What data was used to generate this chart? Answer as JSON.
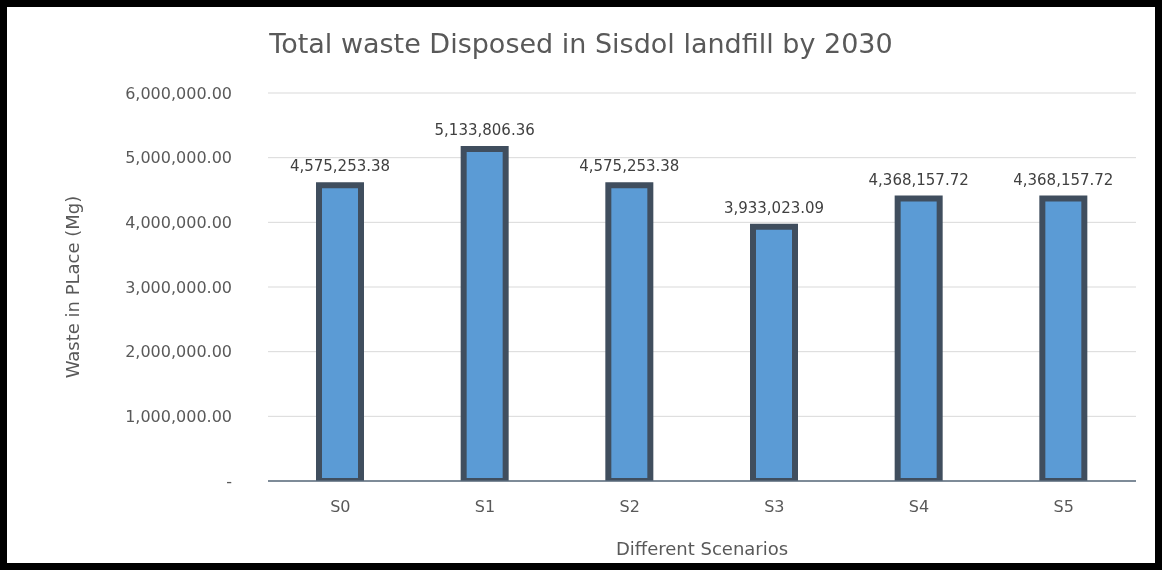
{
  "chart_data": {
    "type": "bar",
    "title": "Total waste Disposed in Sisdol landfill by 2030",
    "xlabel": "Different Scenarios",
    "ylabel": "Waste in PLace (Mg)",
    "categories": [
      "S0",
      "S1",
      "S2",
      "S3",
      "S4",
      "S5"
    ],
    "values": [
      4575253.38,
      5133806.36,
      4575253.38,
      3933023.09,
      4368157.72,
      4368157.72
    ],
    "value_labels": [
      "4,575,253.38",
      "5,133,806.36",
      "4,575,253.38",
      "3,933,023.09",
      "4,368,157.72",
      "4,368,157.72"
    ],
    "color": "#5b9bd5",
    "ylim": [
      0,
      6000000
    ],
    "yticks": [
      {
        "value": 0,
        "label": "-"
      },
      {
        "value": 1000000,
        "label": "1,000,000.00"
      },
      {
        "value": 2000000,
        "label": "2,000,000.00"
      },
      {
        "value": 3000000,
        "label": "3,000,000.00"
      },
      {
        "value": 4000000,
        "label": "4,000,000.00"
      },
      {
        "value": 5000000,
        "label": "5,000,000.00"
      },
      {
        "value": 6000000,
        "label": "6,000,000.00"
      }
    ],
    "grid": "y"
  }
}
